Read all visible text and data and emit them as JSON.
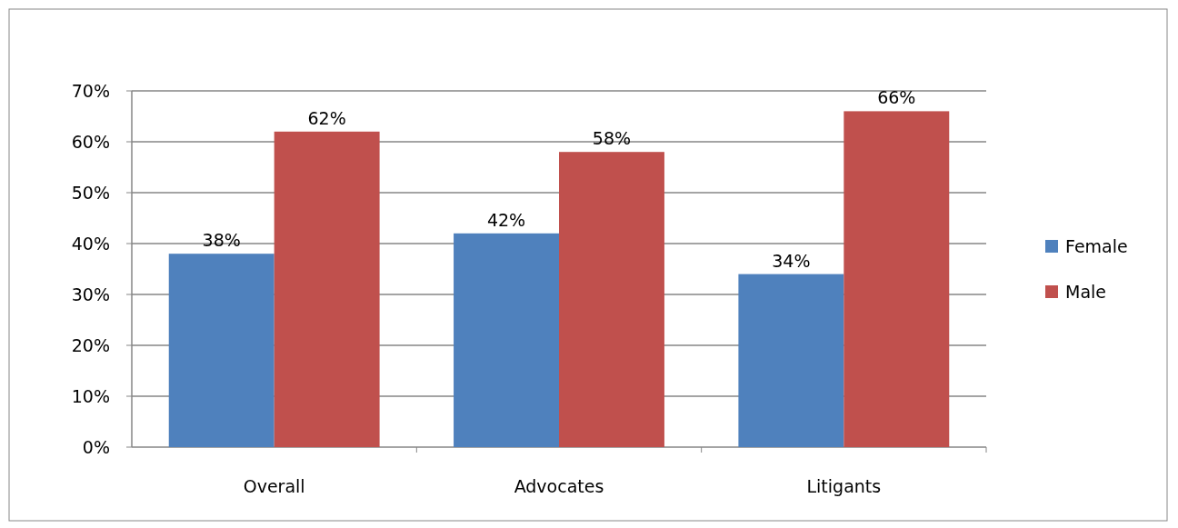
{
  "chart_data": {
    "type": "bar",
    "categories": [
      "Overall",
      "Advocates",
      "Litigants"
    ],
    "series": [
      {
        "name": "Female",
        "color": "#4f81bd",
        "values": [
          38,
          42,
          34
        ],
        "value_labels": [
          "38%",
          "42%",
          "34%"
        ]
      },
      {
        "name": "Male",
        "color": "#c0504d",
        "values": [
          62,
          58,
          66
        ],
        "value_labels": [
          "62%",
          "58%",
          "66%"
        ]
      }
    ],
    "ylim": [
      0,
      70
    ],
    "yticks": [
      {
        "value": 0,
        "label": "0%"
      },
      {
        "value": 10,
        "label": "10%"
      },
      {
        "value": 20,
        "label": "20%"
      },
      {
        "value": 30,
        "label": "30%"
      },
      {
        "value": 40,
        "label": "40%"
      },
      {
        "value": 50,
        "label": "50%"
      },
      {
        "value": 60,
        "label": "60%"
      },
      {
        "value": 70,
        "label": "70%"
      }
    ],
    "grid": "y",
    "legend": "right"
  }
}
